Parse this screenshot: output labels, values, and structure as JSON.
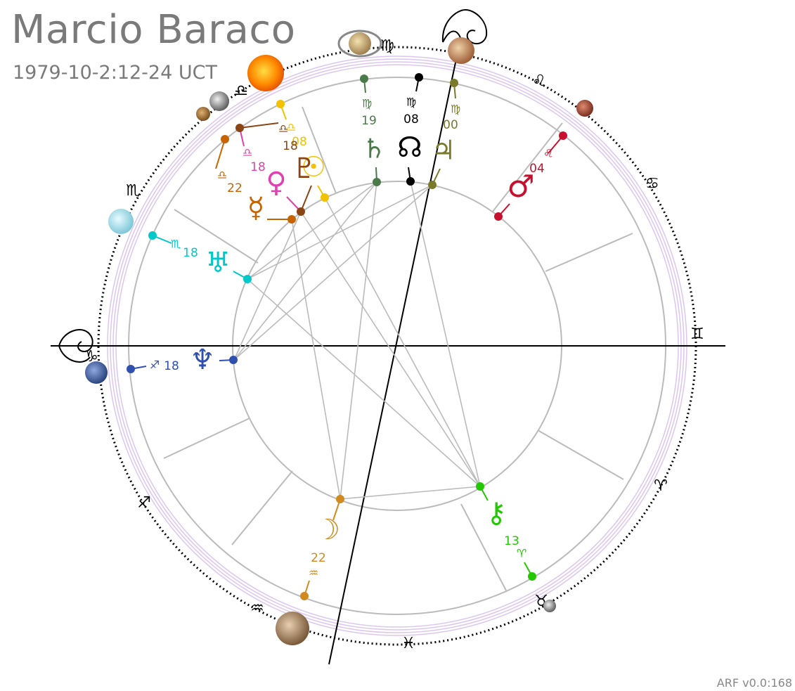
{
  "header": {
    "name": "Marcio Baraco",
    "datetime": "1979-10-2:12-24 UCT"
  },
  "footer": {
    "version": "ARF v0.0:168"
  },
  "colors": {
    "ring": "#bbbbbb",
    "band": "#d6b8ec",
    "axis": "#000000",
    "title": "#7a7a7a"
  },
  "zodiac_signs": [
    {
      "name": "aries",
      "glyph": "♈"
    },
    {
      "name": "taurus",
      "glyph": "♉"
    },
    {
      "name": "gemini",
      "glyph": "♊"
    },
    {
      "name": "cancer",
      "glyph": "♋"
    },
    {
      "name": "leo",
      "glyph": "♌"
    },
    {
      "name": "virgo",
      "glyph": "♍"
    },
    {
      "name": "libra",
      "glyph": "♎"
    },
    {
      "name": "scorpio",
      "glyph": "♏"
    },
    {
      "name": "sagittarius",
      "glyph": "♐"
    },
    {
      "name": "capricorn",
      "glyph": "♑"
    },
    {
      "name": "aquarius",
      "glyph": "♒"
    },
    {
      "name": "pisces",
      "glyph": "♓"
    }
  ],
  "ascendant_icon": "capricorn-ornament-icon",
  "midheaven_icon": "virgo-ornament-icon",
  "planets": [
    {
      "name": "saturn",
      "glyph": "♄",
      "sign_glyph": "♍",
      "degree": "19",
      "color": "#4a7a4a"
    },
    {
      "name": "north-node",
      "glyph": "☊",
      "sign_glyph": "♍",
      "degree": "08",
      "color": "#000000"
    },
    {
      "name": "jupiter",
      "glyph": "♃",
      "sign_glyph": "♍",
      "degree": "00",
      "color": "#7a7a2a"
    },
    {
      "name": "mars",
      "glyph": "♂",
      "sign_glyph": "♌",
      "degree": "04",
      "color": "#c8102e"
    },
    {
      "name": "sun",
      "glyph": "☉",
      "sign_glyph": "♎",
      "degree": "08",
      "color": "#f2c200"
    },
    {
      "name": "pluto",
      "glyph": "♇",
      "sign_glyph": "♎",
      "degree": "18",
      "color": "#8b4513"
    },
    {
      "name": "venus",
      "glyph": "♀",
      "sign_glyph": "♎",
      "degree": "18",
      "color": "#e040b0"
    },
    {
      "name": "mercury",
      "glyph": "☿",
      "sign_glyph": "♎",
      "degree": "22",
      "color": "#c86400"
    },
    {
      "name": "uranus",
      "glyph": "♅",
      "sign_glyph": "♏",
      "degree": "18",
      "color": "#00c8c8"
    },
    {
      "name": "neptune",
      "glyph": "♆",
      "sign_glyph": "♐",
      "degree": "18",
      "color": "#3050b0"
    },
    {
      "name": "moon",
      "glyph": "☽",
      "sign_glyph": "♒",
      "degree": "22",
      "color": "#d08a20"
    },
    {
      "name": "chiron",
      "glyph": "⚷",
      "sign_glyph": "♈",
      "degree": "13",
      "color": "#22c800"
    }
  ]
}
